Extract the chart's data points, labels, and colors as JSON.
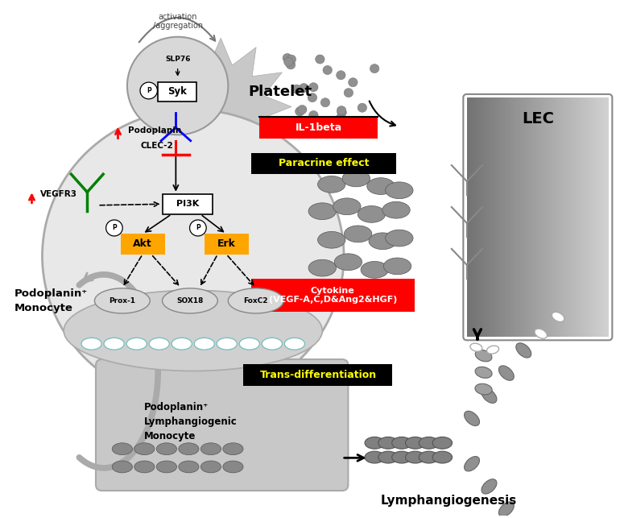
{
  "bg_color": "#ffffff",
  "orange_box_color": "#FFA500",
  "red_color": "#ff0000",
  "green_color": "#008000",
  "blue_color": "#0000ff",
  "black_color": "#000000",
  "yellow_color": "#ffff00",
  "label_platelet": "Platelet",
  "label_lec": "LEC",
  "label_slp76": "SLP76",
  "label_syk": "Syk",
  "label_clec2": "CLEC-2",
  "label_podoplanin": "Podoplanin",
  "label_vegfr3": "VEGFR3",
  "label_pi3k": "PI3K",
  "label_akt": "Akt",
  "label_erk": "Erk",
  "label_prox1": "Prox-1",
  "label_sox18": "SOX18",
  "label_foxc2": "FoxC2",
  "label_activation": "activation\n/aggregation",
  "label_il1beta": "IL-1beta",
  "label_paracrine": "Paracrine effect",
  "label_cytokine": "Cytokine\n(VEGF-A,C,D&Ang2&HGF)",
  "label_transdiff": "Trans-differentiation",
  "label_podoplanin_mono": "Podoplanin⁺\nMonocyte",
  "label_podo_lymph": "Podoplanin⁺\nLymphangiogenic\nMonocyte",
  "label_lymphangiogenesis": "Lymphangiogenesis"
}
